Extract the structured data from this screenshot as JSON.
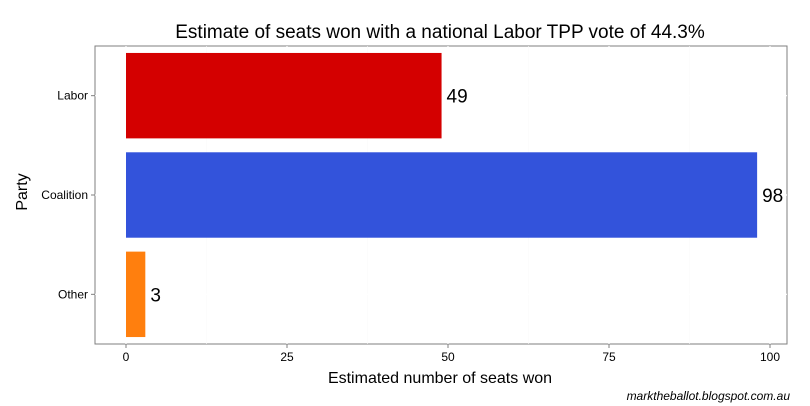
{
  "chart_data": {
    "type": "bar",
    "orientation": "horizontal",
    "title": "Estimate of seats won with a national Labor TPP vote of 44.3%",
    "xlabel": "Estimated number of seats won",
    "ylabel": "Party",
    "categories": [
      "Labor",
      "Coalition",
      "Other"
    ],
    "values": [
      49,
      98,
      3
    ],
    "data_labels": [
      "49",
      "98",
      "3"
    ],
    "colors": [
      "#d40000",
      "#3353db",
      "#ff7f0e"
    ],
    "xlim": [
      0,
      100
    ],
    "x_ticks": [
      0,
      25,
      50,
      75,
      100
    ],
    "x_tick_labels": [
      "0",
      "25",
      "50",
      "75",
      "100"
    ],
    "grid": true,
    "legend": "none",
    "panel_background": "#ffffff",
    "panel_border": "#7f7f7f"
  },
  "credit": "marktheballot.blogspot.com.au"
}
